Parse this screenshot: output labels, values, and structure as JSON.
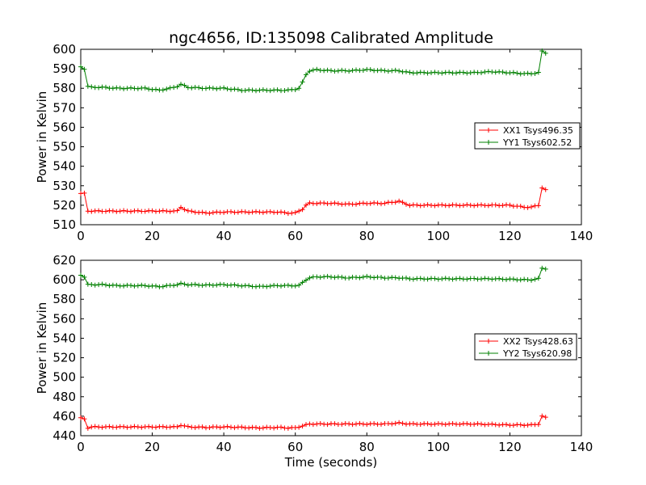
{
  "figure": {
    "title": "ngc4656, ID:135098 Calibrated Amplitude"
  },
  "chart_data": [
    {
      "type": "line",
      "xlabel": "",
      "ylabel": "Power in Kelvin",
      "xlim": [
        0,
        140
      ],
      "ylim": [
        510,
        600
      ],
      "xticks": [
        "0",
        "20",
        "40",
        "60",
        "80",
        "100",
        "120",
        "140"
      ],
      "yticks": [
        "510",
        "520",
        "530",
        "540",
        "550",
        "560",
        "570",
        "580",
        "590",
        "600"
      ],
      "legend_position": "center-right",
      "series": [
        {
          "name": "XX1 Tsys496.35",
          "color": "#ff0000",
          "x": [
            0,
            1,
            2,
            3,
            6,
            10,
            14,
            18,
            22,
            25,
            27,
            28,
            30,
            35,
            40,
            45,
            50,
            55,
            58,
            60,
            62,
            63,
            64,
            66,
            70,
            75,
            80,
            85,
            89,
            92,
            100,
            110,
            120,
            124,
            126,
            128,
            129,
            130
          ],
          "y": [
            526,
            526,
            517,
            517,
            517,
            517,
            517,
            517,
            517,
            517,
            517,
            519,
            517,
            516,
            516.5,
            516.5,
            516.5,
            516.5,
            516,
            516,
            518,
            520,
            521,
            521,
            521,
            520.5,
            521,
            521,
            522,
            520,
            520,
            520,
            520,
            519,
            519,
            520,
            529,
            528
          ]
        },
        {
          "name": "YY1 Tsys602.52",
          "color": "#008000",
          "x": [
            0,
            1,
            2,
            3,
            6,
            10,
            14,
            18,
            22,
            25,
            27,
            28,
            30,
            35,
            40,
            45,
            50,
            55,
            58,
            60,
            61,
            62,
            63,
            64,
            66,
            70,
            75,
            80,
            85,
            89,
            92,
            100,
            110,
            115,
            120,
            124,
            126,
            128,
            129,
            130
          ],
          "y": [
            591,
            590,
            581,
            580.5,
            580.5,
            580,
            580,
            580,
            579,
            580,
            581,
            582,
            580.5,
            580,
            580,
            579,
            579,
            579,
            579,
            579.5,
            580,
            583,
            587,
            589,
            589.5,
            589,
            589,
            589.5,
            589,
            589,
            588,
            588,
            588,
            588.5,
            588,
            587.5,
            587.5,
            588,
            599,
            598
          ]
        }
      ]
    },
    {
      "type": "line",
      "xlabel": "Time (seconds)",
      "ylabel": "Power in Kelvin",
      "xlim": [
        0,
        140
      ],
      "ylim": [
        440,
        620
      ],
      "xticks": [
        "0",
        "20",
        "40",
        "60",
        "80",
        "100",
        "120",
        "140"
      ],
      "yticks": [
        "440",
        "460",
        "480",
        "500",
        "520",
        "540",
        "560",
        "580",
        "600",
        "620"
      ],
      "legend_position": "center-right",
      "series": [
        {
          "name": "XX2 Tsys428.63",
          "color": "#ff0000",
          "x": [
            0,
            1,
            2,
            3,
            6,
            10,
            14,
            18,
            22,
            25,
            27,
            28,
            30,
            35,
            40,
            45,
            50,
            55,
            58,
            60,
            62,
            63,
            64,
            66,
            70,
            75,
            80,
            85,
            89,
            92,
            100,
            110,
            120,
            124,
            126,
            128,
            129,
            130
          ],
          "y": [
            458,
            457,
            448,
            449,
            449,
            449,
            449,
            449,
            449,
            449,
            449,
            451,
            449,
            448.5,
            449,
            448.5,
            448,
            448.5,
            448,
            448,
            450,
            451,
            452,
            452,
            452,
            452,
            452,
            452,
            453,
            452,
            452,
            452,
            451,
            451,
            451,
            452,
            460,
            459
          ]
        },
        {
          "name": "YY2 Tsys620.98",
          "color": "#008000",
          "x": [
            0,
            1,
            2,
            3,
            6,
            10,
            14,
            18,
            22,
            25,
            27,
            28,
            30,
            35,
            40,
            45,
            50,
            55,
            58,
            60,
            61,
            62,
            63,
            64,
            66,
            70,
            75,
            80,
            85,
            89,
            92,
            100,
            110,
            115,
            120,
            124,
            126,
            128,
            129,
            130
          ],
          "y": [
            605,
            603,
            595,
            595,
            595,
            594,
            594,
            594,
            593,
            594,
            595,
            596,
            595,
            594.5,
            595,
            594,
            593,
            594,
            594,
            594,
            594,
            597,
            600,
            602,
            603,
            603,
            602,
            603,
            602,
            602,
            601,
            601,
            601,
            601,
            600.5,
            600,
            600,
            601,
            612,
            611
          ]
        }
      ]
    }
  ]
}
